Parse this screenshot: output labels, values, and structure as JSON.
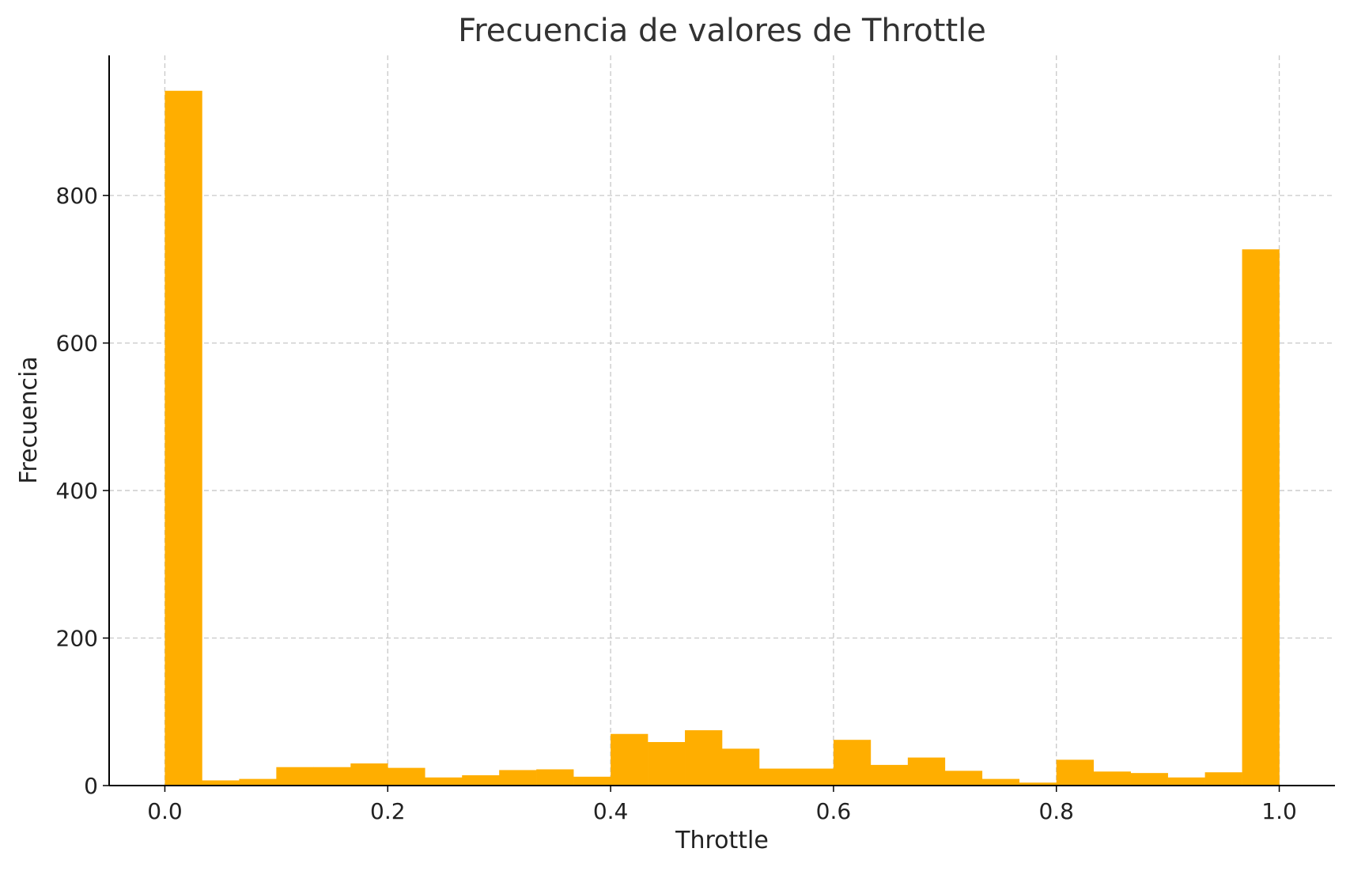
{
  "chart_data": {
    "type": "bar",
    "title": "Frecuencia de valores de Throttle",
    "xlabel": "Throttle",
    "ylabel": "Frecuencia",
    "xlim": [
      -0.05,
      1.05
    ],
    "ylim": [
      0,
      990
    ],
    "xticks": [
      0.0,
      0.2,
      0.4,
      0.6,
      0.8,
      1.0
    ],
    "xtick_labels": [
      "0.0",
      "0.2",
      "0.4",
      "0.6",
      "0.8",
      "1.0"
    ],
    "yticks": [
      0,
      200,
      400,
      600,
      800
    ],
    "ytick_labels": [
      "0",
      "200",
      "400",
      "600",
      "800"
    ],
    "grid": true,
    "color": "#FFAE00",
    "bins": {
      "start": 0.0,
      "end": 1.0,
      "count": 30,
      "values": [
        942,
        7,
        9,
        25,
        25,
        30,
        24,
        11,
        14,
        21,
        22,
        12,
        70,
        59,
        75,
        50,
        23,
        23,
        62,
        28,
        38,
        20,
        9,
        4,
        35,
        19,
        17,
        11,
        18,
        727
      ]
    }
  }
}
